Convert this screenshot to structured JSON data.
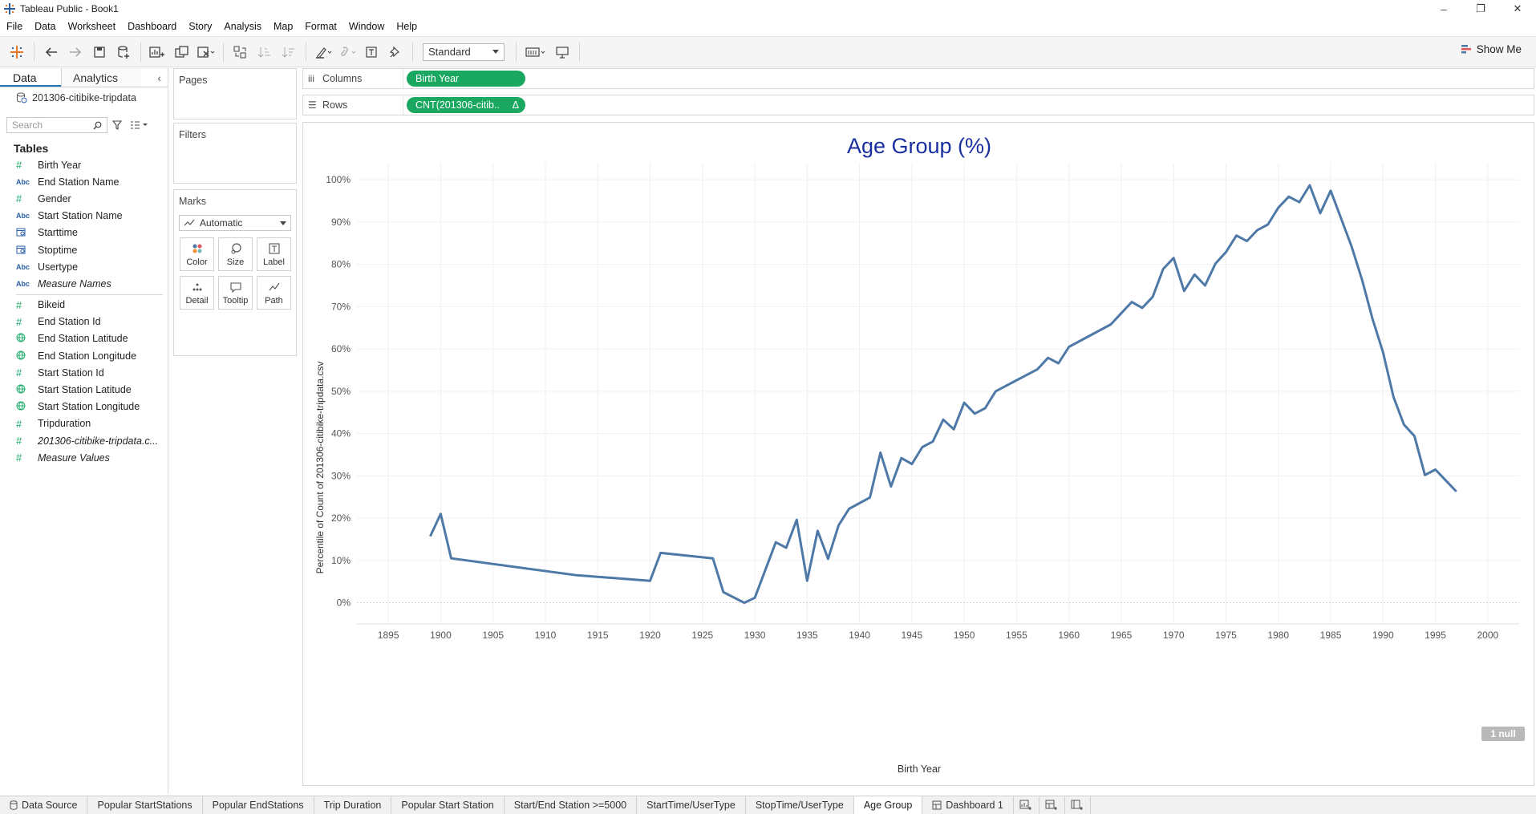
{
  "window": {
    "title": "Tableau Public - Book1",
    "minimize": "–",
    "restore": "❐",
    "close": "✕"
  },
  "menu": [
    "File",
    "Data",
    "Worksheet",
    "Dashboard",
    "Story",
    "Analysis",
    "Map",
    "Format",
    "Window",
    "Help"
  ],
  "toolbar": {
    "fit_select": "Standard",
    "show_me": "Show Me"
  },
  "data_pane": {
    "tab_data": "Data",
    "tab_analytics": "Analytics",
    "datasource": "201306-citibike-tripdata",
    "search_placeholder": "Search",
    "tables_heading": "Tables",
    "dimensions": [
      {
        "type": "num",
        "name": "Birth Year"
      },
      {
        "type": "abc",
        "name": "End Station Name"
      },
      {
        "type": "num",
        "name": "Gender"
      },
      {
        "type": "abc",
        "name": "Start Station Name"
      },
      {
        "type": "cal",
        "name": "Starttime"
      },
      {
        "type": "cal",
        "name": "Stoptime"
      },
      {
        "type": "abc",
        "name": "Usertype"
      },
      {
        "type": "abc",
        "name": "Measure Names",
        "italic": true
      }
    ],
    "measures": [
      {
        "type": "num",
        "name": "Bikeid"
      },
      {
        "type": "num",
        "name": "End Station Id"
      },
      {
        "type": "glb",
        "name": "End Station Latitude"
      },
      {
        "type": "glb",
        "name": "End Station Longitude"
      },
      {
        "type": "num",
        "name": "Start Station Id"
      },
      {
        "type": "glb",
        "name": "Start Station Latitude"
      },
      {
        "type": "glb",
        "name": "Start Station Longitude"
      },
      {
        "type": "num",
        "name": "Tripduration"
      },
      {
        "type": "num",
        "name": "201306-citibike-tripdata.c...",
        "italic": true
      },
      {
        "type": "num",
        "name": "Measure Values",
        "italic": true
      }
    ]
  },
  "cards": {
    "pages": "Pages",
    "filters": "Filters",
    "marks": "Marks",
    "marks_type": "Automatic",
    "mark_buttons": [
      "Color",
      "Size",
      "Label",
      "Detail",
      "Tooltip",
      "Path"
    ]
  },
  "shelves": {
    "columns_label": "Columns",
    "columns_pill": "Birth Year",
    "rows_label": "Rows",
    "rows_pill": "CNT(201306-citib..",
    "rows_pill_delta": "Δ"
  },
  "null_badge": "1 null",
  "chart_data": {
    "type": "line",
    "title": "Age Group  (%)",
    "xlabel": "Birth Year",
    "ylabel": "Percentile of Count of 201306-citibike-tripdata.csv",
    "xlim": [
      1892,
      2003
    ],
    "ylim": [
      -5,
      104
    ],
    "xticks": [
      1895,
      1900,
      1905,
      1910,
      1915,
      1920,
      1925,
      1930,
      1935,
      1940,
      1945,
      1950,
      1955,
      1960,
      1965,
      1970,
      1975,
      1980,
      1985,
      1990,
      1995,
      2000
    ],
    "yticks": [
      0,
      10,
      20,
      30,
      40,
      50,
      60,
      70,
      80,
      90,
      100
    ],
    "ytick_labels": [
      "0%",
      "10%",
      "20%",
      "30%",
      "40%",
      "50%",
      "60%",
      "70%",
      "80%",
      "90%",
      "100%"
    ],
    "color": "#4e79a7",
    "title_color": "#1a2fa0",
    "series": [
      {
        "x": [
          1899,
          1900,
          1901,
          1913,
          1920,
          1921,
          1926,
          1927,
          1929,
          1930,
          1932,
          1933,
          1934,
          1935,
          1936,
          1937,
          1938,
          1939,
          1941,
          1942,
          1943,
          1944,
          1945,
          1946,
          1947,
          1948,
          1949,
          1950,
          1951,
          1952,
          1953,
          1957,
          1958,
          1959,
          1960,
          1964,
          1966,
          1967,
          1968,
          1969,
          1970,
          1971,
          1972,
          1973,
          1974,
          1975,
          1976,
          1977,
          1978,
          1979,
          1980,
          1981,
          1982,
          1983,
          1984,
          1985,
          1986,
          1987,
          1988,
          1989,
          1990,
          1991,
          1992,
          1993,
          1994,
          1995,
          1996,
          1997
        ],
        "values": [
          15.7,
          21.0,
          10.5,
          6.5,
          5.2,
          11.8,
          10.5,
          2.5,
          0.0,
          1.2,
          14.3,
          13.0,
          19.6,
          5.2,
          17.0,
          10.4,
          18.3,
          22.2,
          24.9,
          35.5,
          27.5,
          34.2,
          32.8,
          36.8,
          38.1,
          43.3,
          41.0,
          47.3,
          44.7,
          46.0,
          50.0,
          55.2,
          57.9,
          56.6,
          60.5,
          65.8,
          71.1,
          69.7,
          72.3,
          78.9,
          81.5,
          73.7,
          77.6,
          75.0,
          80.2,
          82.9,
          86.8,
          85.5,
          88.1,
          89.4,
          93.4,
          96.0,
          94.7,
          98.7,
          92.1,
          97.4,
          90.8,
          84.2,
          76.3,
          67.1,
          59.2,
          48.6,
          42.1,
          39.4,
          30.2,
          31.5,
          28.9,
          26.3
        ]
      }
    ]
  },
  "sheet_tabs": [
    {
      "label": "Data Source",
      "icon": "datasource-icon"
    },
    {
      "label": "Popular  StartStations"
    },
    {
      "label": "Popular  EndStations"
    },
    {
      "label": "Trip Duration"
    },
    {
      "label": "Popular Start Station"
    },
    {
      "label": "Start/End Station >=5000"
    },
    {
      "label": "StartTime/UserType"
    },
    {
      "label": "StopTime/UserType"
    },
    {
      "label": "Age Group",
      "active": true
    },
    {
      "label": "Dashboard 1",
      "icon": "dashboard-icon"
    }
  ]
}
